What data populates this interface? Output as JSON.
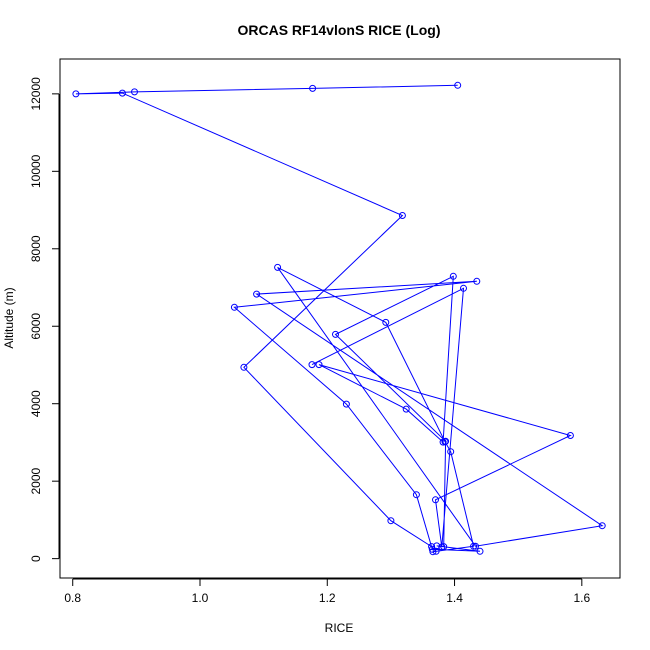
{
  "chart_data": {
    "type": "line",
    "title": "ORCAS RF14vlonS RICE (Log)",
    "xlabel": "RICE",
    "ylabel": "Altitude (m)",
    "xlim": [
      0.78,
      1.66
    ],
    "ylim": [
      -500,
      12900
    ],
    "xticks": [
      0.8,
      1.0,
      1.2,
      1.4,
      1.6
    ],
    "xtick_labels": [
      "0.8",
      "1.0",
      "1.2",
      "1.4",
      "1.6"
    ],
    "yticks": [
      0,
      2000,
      4000,
      6000,
      8000,
      10000,
      12000
    ],
    "ytick_labels": [
      "0",
      "2000",
      "4000",
      "6000",
      "8000",
      "10000",
      "12000"
    ],
    "grid": false,
    "color": "#0000ff",
    "series": [
      {
        "points": [
          {
            "x": 1.405,
            "y": 12220
          },
          {
            "x": 1.177,
            "y": 12140
          },
          {
            "x": 0.897,
            "y": 12050
          },
          {
            "x": 0.805,
            "y": 12000
          },
          {
            "x": 0.878,
            "y": 12020
          },
          {
            "x": 1.318,
            "y": 8860
          },
          {
            "x": 1.069,
            "y": 4940
          },
          {
            "x": 1.3,
            "y": 980
          },
          {
            "x": 1.364,
            "y": 310
          },
          {
            "x": 1.371,
            "y": 190
          },
          {
            "x": 1.366,
            "y": 180
          },
          {
            "x": 1.43,
            "y": 320
          },
          {
            "x": 1.394,
            "y": 2760
          },
          {
            "x": 1.385,
            "y": 3020
          },
          {
            "x": 1.292,
            "y": 6100
          },
          {
            "x": 1.122,
            "y": 7520
          },
          {
            "x": 1.433,
            "y": 320
          },
          {
            "x": 1.632,
            "y": 850
          },
          {
            "x": 1.089,
            "y": 6830
          },
          {
            "x": 1.435,
            "y": 7160
          },
          {
            "x": 1.054,
            "y": 6490
          },
          {
            "x": 1.23,
            "y": 3990
          },
          {
            "x": 1.34,
            "y": 1650
          },
          {
            "x": 1.365,
            "y": 240
          },
          {
            "x": 1.44,
            "y": 190
          },
          {
            "x": 1.372,
            "y": 330
          },
          {
            "x": 1.383,
            "y": 310
          },
          {
            "x": 1.386,
            "y": 3030
          },
          {
            "x": 1.213,
            "y": 5790
          },
          {
            "x": 1.398,
            "y": 7290
          },
          {
            "x": 1.382,
            "y": 3010
          },
          {
            "x": 1.324,
            "y": 3860
          },
          {
            "x": 1.187,
            "y": 5010
          },
          {
            "x": 1.582,
            "y": 3180
          },
          {
            "x": 1.37,
            "y": 1520
          },
          {
            "x": 1.38,
            "y": 300
          },
          {
            "x": 1.414,
            "y": 6980
          },
          {
            "x": 1.176,
            "y": 5010
          }
        ]
      }
    ]
  }
}
